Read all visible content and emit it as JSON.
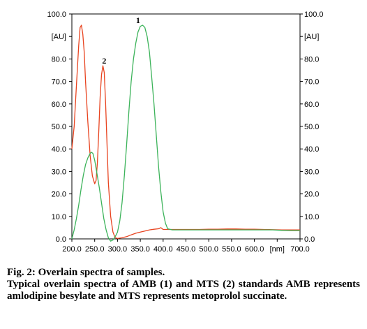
{
  "chart_data": {
    "type": "line",
    "xlabel": "",
    "ylabel": "",
    "x_tick_labels": [
      "200.0",
      "250.0",
      "300.0",
      "350.0",
      "400.0",
      "450.0",
      "500.0",
      "550.0",
      "600.0",
      "[nm]",
      "700.0"
    ],
    "y_tick_labels": [
      "0.0",
      "10.0",
      "20.0",
      "30.0",
      "40.0",
      "50.0",
      "60.0",
      "70.0",
      "80.0",
      "[AU]",
      "100.0"
    ],
    "xlim": [
      200,
      700
    ],
    "ylim": [
      0,
      100
    ],
    "grid": false,
    "annotations": [
      {
        "text": "1",
        "x": 345,
        "y": 96
      },
      {
        "text": "2",
        "x": 271,
        "y": 78
      }
    ],
    "series": [
      {
        "color": "#e8431f",
        "x": [
          200,
          205,
          210,
          215,
          218,
          221,
          224,
          227,
          230,
          235,
          240,
          245,
          250,
          253,
          256,
          259,
          262,
          265,
          268,
          271,
          274,
          277,
          280,
          285,
          290,
          295,
          300,
          310,
          320,
          330,
          340,
          350,
          360,
          370,
          380,
          390,
          395,
          400,
          410,
          420,
          440,
          460,
          480,
          500,
          520,
          540,
          560,
          580,
          600,
          620,
          640,
          660,
          680,
          700
        ],
        "y": [
          40,
          50,
          68,
          86,
          94,
          95,
          91,
          83,
          70,
          52,
          37,
          28,
          24.5,
          26,
          34,
          48,
          63,
          73,
          77,
          74,
          60,
          42,
          25,
          10,
          3,
          0.5,
          0.2,
          0.5,
          1,
          1.8,
          2.5,
          3,
          3.5,
          4,
          4.3,
          4.5,
          5,
          4.2,
          4.2,
          4.2,
          4.2,
          4.2,
          4.2,
          4.3,
          4.3,
          4.4,
          4.4,
          4.3,
          4.3,
          4.2,
          4.1,
          4,
          4,
          4
        ]
      },
      {
        "color": "#3cb35a",
        "x": [
          200,
          205,
          210,
          215,
          220,
          225,
          230,
          235,
          240,
          243,
          246,
          250,
          255,
          260,
          265,
          270,
          275,
          280,
          285,
          290,
          295,
          300,
          305,
          310,
          315,
          320,
          325,
          330,
          335,
          340,
          345,
          350,
          355,
          360,
          365,
          370,
          375,
          380,
          385,
          390,
          395,
          400,
          405,
          410,
          420,
          440,
          460,
          480,
          500,
          520,
          540,
          560,
          580,
          600,
          620,
          640,
          660,
          680,
          700
        ],
        "y": [
          0,
          4,
          9,
          15,
          22,
          28,
          33,
          36,
          38,
          38.5,
          38,
          35,
          29,
          23,
          16,
          9,
          4,
          0.5,
          -1,
          -0.5,
          1,
          3,
          8,
          16,
          28,
          42,
          57,
          70,
          80,
          87,
          92,
          94.5,
          95,
          94,
          90,
          83,
          72,
          60,
          46,
          32,
          21,
          12,
          7,
          4.5,
          4,
          4,
          4,
          4,
          4,
          4,
          4,
          4,
          4,
          4,
          4,
          4,
          3.8,
          3.7,
          3.7
        ]
      }
    ]
  },
  "caption": {
    "title": "Fig. 2: Overlain spectra of samples.",
    "text": "Typical overlain spectra of AMB (1) and MTS (2) standards AMB represents amlodipine besylate and MTS represents metoprolol succinate."
  }
}
